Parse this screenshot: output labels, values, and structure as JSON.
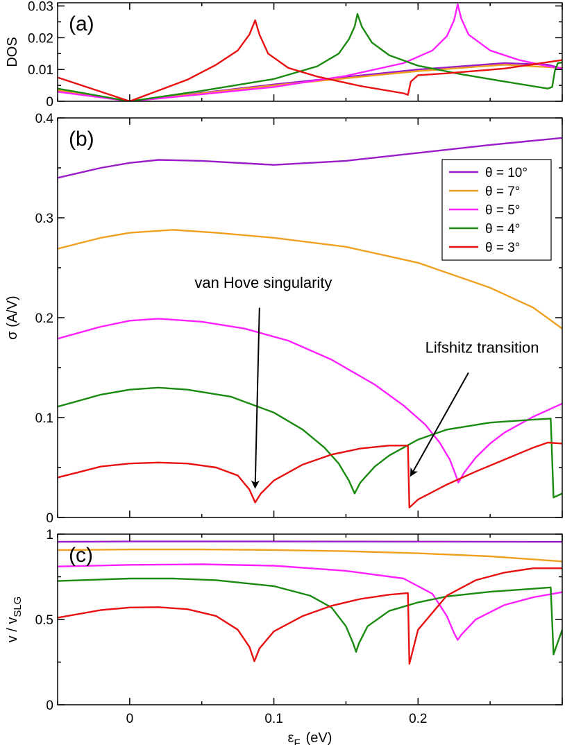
{
  "chart_data": [
    {
      "type": "line",
      "panel_label": "(a)",
      "ylabel": "DOS",
      "xlim": [
        -0.05,
        0.3
      ],
      "ylim": [
        0,
        0.031
      ],
      "yticks": [
        0,
        0.01,
        0.02,
        0.03
      ],
      "ytick_labels": [
        "0",
        "0.01",
        "0.02",
        "0.03"
      ],
      "xticks": [
        0,
        0.1,
        0.2
      ],
      "show_xtick_labels": false,
      "series": [
        {
          "color": "#9a1cc8",
          "points": [
            [
              -0.05,
              0.0035
            ],
            [
              0.0,
              0.0
            ],
            [
              0.1,
              0.0053
            ],
            [
              0.2,
              0.01
            ],
            [
              0.26,
              0.012
            ],
            [
              0.29,
              0.0115
            ],
            [
              0.3,
              0.0103
            ]
          ]
        },
        {
          "color": "#f0a020",
          "points": [
            [
              -0.05,
              0.0035
            ],
            [
              0.0,
              0.0
            ],
            [
              0.1,
              0.005
            ],
            [
              0.2,
              0.0095
            ],
            [
              0.26,
              0.0115
            ],
            [
              0.3,
              0.0105
            ]
          ]
        },
        {
          "color": "#ff20ff",
          "points": [
            [
              -0.05,
              0.003
            ],
            [
              0.0,
              0.0
            ],
            [
              0.05,
              0.0022
            ],
            [
              0.1,
              0.0045
            ],
            [
              0.15,
              0.008
            ],
            [
              0.19,
              0.012
            ],
            [
              0.21,
              0.016
            ],
            [
              0.22,
              0.0205
            ],
            [
              0.225,
              0.0255
            ],
            [
              0.2275,
              0.0305
            ],
            [
              0.23,
              0.026
            ],
            [
              0.235,
              0.021
            ],
            [
              0.25,
              0.016
            ],
            [
              0.27,
              0.013
            ],
            [
              0.29,
              0.011
            ],
            [
              0.3,
              0.0103
            ]
          ]
        },
        {
          "color": "#1a8a10",
          "points": [
            [
              -0.05,
              0.004
            ],
            [
              0.0,
              0.0
            ],
            [
              0.05,
              0.0033
            ],
            [
              0.1,
              0.007
            ],
            [
              0.13,
              0.011
            ],
            [
              0.145,
              0.015
            ],
            [
              0.152,
              0.0195
            ],
            [
              0.156,
              0.0235
            ],
            [
              0.158,
              0.0275
            ],
            [
              0.161,
              0.0235
            ],
            [
              0.168,
              0.0185
            ],
            [
              0.18,
              0.0145
            ],
            [
              0.2,
              0.0112
            ],
            [
              0.23,
              0.0085
            ],
            [
              0.26,
              0.0062
            ],
            [
              0.29,
              0.004
            ],
            [
              0.293,
              0.0045
            ],
            [
              0.295,
              0.0098
            ],
            [
              0.297,
              0.012
            ],
            [
              0.3,
              0.0122
            ]
          ]
        },
        {
          "color": "#e81010",
          "points": [
            [
              -0.05,
              0.0075
            ],
            [
              0.0,
              0.0
            ],
            [
              0.04,
              0.0068
            ],
            [
              0.06,
              0.0115
            ],
            [
              0.075,
              0.016
            ],
            [
              0.083,
              0.021
            ],
            [
              0.087,
              0.0255
            ],
            [
              0.09,
              0.021
            ],
            [
              0.096,
              0.015
            ],
            [
              0.11,
              0.0105
            ],
            [
              0.13,
              0.0078
            ],
            [
              0.16,
              0.0048
            ],
            [
              0.19,
              0.0025
            ],
            [
              0.193,
              0.002
            ],
            [
              0.195,
              0.0062
            ],
            [
              0.2,
              0.0082
            ],
            [
              0.22,
              0.0088
            ],
            [
              0.23,
              0.0092
            ],
            [
              0.26,
              0.0103
            ],
            [
              0.3,
              0.013
            ]
          ]
        }
      ]
    },
    {
      "type": "line",
      "panel_label": "(b)",
      "ylabel": "σ (A/V)",
      "xlim": [
        -0.05,
        0.3
      ],
      "ylim": [
        0,
        0.4
      ],
      "yticks": [
        0,
        0.1,
        0.2,
        0.3,
        0.4
      ],
      "ytick_labels": [
        "0",
        "0.1",
        "0.2",
        "0.3",
        "0.4"
      ],
      "xticks": [
        0,
        0.1,
        0.2
      ],
      "show_xtick_labels": false,
      "legend": {
        "placement": "top-right",
        "entries": [
          {
            "label": "θ = 10°",
            "color": "#9a1cc8"
          },
          {
            "label": "θ =   7°",
            "color": "#f0a020"
          },
          {
            "label": "θ =   5°",
            "color": "#ff20ff"
          },
          {
            "label": "θ =   4°",
            "color": "#1a8a10"
          },
          {
            "label": "θ =   3°",
            "color": "#e81010"
          }
        ]
      },
      "annotations": [
        {
          "text": "van Hove singularity",
          "text_at": [
            0.045,
            0.23
          ],
          "arrow_from": [
            0.09,
            0.21
          ],
          "arrow_to": [
            0.087,
            0.03
          ]
        },
        {
          "text": "Lifshitz transition",
          "text_at": [
            0.205,
            0.165
          ],
          "arrow_from": [
            0.235,
            0.145
          ],
          "arrow_to": [
            0.195,
            0.042
          ]
        }
      ],
      "series": [
        {
          "color": "#9a1cc8",
          "points": [
            [
              -0.05,
              0.34
            ],
            [
              -0.02,
              0.35
            ],
            [
              0.0,
              0.355
            ],
            [
              0.02,
              0.358
            ],
            [
              0.05,
              0.357
            ],
            [
              0.1,
              0.353
            ],
            [
              0.15,
              0.357
            ],
            [
              0.2,
              0.365
            ],
            [
              0.25,
              0.373
            ],
            [
              0.3,
              0.38
            ]
          ]
        },
        {
          "color": "#f0a020",
          "points": [
            [
              -0.05,
              0.269
            ],
            [
              -0.02,
              0.28
            ],
            [
              0.0,
              0.285
            ],
            [
              0.03,
              0.288
            ],
            [
              0.06,
              0.285
            ],
            [
              0.1,
              0.28
            ],
            [
              0.15,
              0.271
            ],
            [
              0.2,
              0.255
            ],
            [
              0.25,
              0.23
            ],
            [
              0.28,
              0.21
            ],
            [
              0.3,
              0.189
            ]
          ]
        },
        {
          "color": "#ff20ff",
          "points": [
            [
              -0.05,
              0.179
            ],
            [
              -0.02,
              0.191
            ],
            [
              0.0,
              0.197
            ],
            [
              0.02,
              0.199
            ],
            [
              0.05,
              0.196
            ],
            [
              0.08,
              0.189
            ],
            [
              0.11,
              0.177
            ],
            [
              0.14,
              0.158
            ],
            [
              0.17,
              0.133
            ],
            [
              0.19,
              0.112
            ],
            [
              0.205,
              0.093
            ],
            [
              0.215,
              0.075
            ],
            [
              0.222,
              0.058
            ],
            [
              0.226,
              0.043
            ],
            [
              0.228,
              0.035
            ],
            [
              0.232,
              0.045
            ],
            [
              0.24,
              0.06
            ],
            [
              0.25,
              0.074
            ],
            [
              0.26,
              0.085
            ],
            [
              0.28,
              0.101
            ],
            [
              0.3,
              0.114
            ]
          ]
        },
        {
          "color": "#1a8a10",
          "points": [
            [
              -0.05,
              0.111
            ],
            [
              -0.02,
              0.123
            ],
            [
              0.0,
              0.128
            ],
            [
              0.02,
              0.13
            ],
            [
              0.04,
              0.128
            ],
            [
              0.07,
              0.121
            ],
            [
              0.1,
              0.105
            ],
            [
              0.12,
              0.088
            ],
            [
              0.135,
              0.07
            ],
            [
              0.145,
              0.054
            ],
            [
              0.152,
              0.037
            ],
            [
              0.156,
              0.024
            ],
            [
              0.16,
              0.035
            ],
            [
              0.17,
              0.051
            ],
            [
              0.18,
              0.062
            ],
            [
              0.2,
              0.078
            ],
            [
              0.22,
              0.088
            ],
            [
              0.25,
              0.095
            ],
            [
              0.28,
              0.098
            ],
            [
              0.292,
              0.099
            ],
            [
              0.294,
              0.02
            ],
            [
              0.3,
              0.024
            ]
          ]
        },
        {
          "color": "#e81010",
          "points": [
            [
              -0.05,
              0.04
            ],
            [
              -0.02,
              0.051
            ],
            [
              0.0,
              0.054
            ],
            [
              0.02,
              0.055
            ],
            [
              0.04,
              0.054
            ],
            [
              0.06,
              0.05
            ],
            [
              0.075,
              0.042
            ],
            [
              0.083,
              0.028
            ],
            [
              0.087,
              0.015
            ],
            [
              0.091,
              0.024
            ],
            [
              0.1,
              0.037
            ],
            [
              0.12,
              0.053
            ],
            [
              0.14,
              0.063
            ],
            [
              0.16,
              0.069
            ],
            [
              0.18,
              0.072
            ],
            [
              0.193,
              0.072
            ],
            [
              0.194,
              0.01
            ],
            [
              0.2,
              0.018
            ],
            [
              0.22,
              0.033
            ],
            [
              0.24,
              0.046
            ],
            [
              0.26,
              0.058
            ],
            [
              0.28,
              0.07
            ],
            [
              0.29,
              0.075
            ],
            [
              0.3,
              0.074
            ]
          ]
        }
      ]
    },
    {
      "type": "line",
      "panel_label": "(c)",
      "ylabel": "v / v",
      "ylabel_subscript": "SLG",
      "xlabel": "ε",
      "xlabel_subscript": "F",
      "xlabel_suffix": "(eV)",
      "xlim": [
        -0.05,
        0.3
      ],
      "ylim": [
        0,
        1.0
      ],
      "yticks": [
        0,
        0.5,
        1
      ],
      "ytick_labels": [
        "0",
        "0.5",
        "1"
      ],
      "xticks": [
        0,
        0.1,
        0.2
      ],
      "xtick_labels": [
        "0",
        "0.1",
        "0.2"
      ],
      "show_xtick_labels": true,
      "series": [
        {
          "color": "#9a1cc8",
          "points": [
            [
              -0.05,
              0.955
            ],
            [
              0.0,
              0.957
            ],
            [
              0.1,
              0.957
            ],
            [
              0.2,
              0.956
            ],
            [
              0.3,
              0.955
            ]
          ]
        },
        {
          "color": "#f0a020",
          "points": [
            [
              -0.05,
              0.906
            ],
            [
              0.0,
              0.91
            ],
            [
              0.05,
              0.91
            ],
            [
              0.1,
              0.907
            ],
            [
              0.15,
              0.9
            ],
            [
              0.2,
              0.888
            ],
            [
              0.25,
              0.87
            ],
            [
              0.3,
              0.84
            ]
          ]
        },
        {
          "color": "#ff20ff",
          "points": [
            [
              -0.05,
              0.81
            ],
            [
              0.0,
              0.82
            ],
            [
              0.05,
              0.823
            ],
            [
              0.1,
              0.815
            ],
            [
              0.15,
              0.785
            ],
            [
              0.19,
              0.74
            ],
            [
              0.21,
              0.65
            ],
            [
              0.22,
              0.52
            ],
            [
              0.225,
              0.42
            ],
            [
              0.2275,
              0.38
            ],
            [
              0.23,
              0.41
            ],
            [
              0.24,
              0.5
            ],
            [
              0.26,
              0.585
            ],
            [
              0.28,
              0.63
            ],
            [
              0.3,
              0.66
            ]
          ]
        },
        {
          "color": "#1a8a10",
          "points": [
            [
              -0.05,
              0.725
            ],
            [
              0.0,
              0.74
            ],
            [
              0.03,
              0.74
            ],
            [
              0.06,
              0.73
            ],
            [
              0.1,
              0.695
            ],
            [
              0.125,
              0.64
            ],
            [
              0.14,
              0.57
            ],
            [
              0.15,
              0.46
            ],
            [
              0.155,
              0.36
            ],
            [
              0.157,
              0.31
            ],
            [
              0.159,
              0.36
            ],
            [
              0.165,
              0.46
            ],
            [
              0.18,
              0.55
            ],
            [
              0.2,
              0.6
            ],
            [
              0.22,
              0.635
            ],
            [
              0.25,
              0.662
            ],
            [
              0.28,
              0.68
            ],
            [
              0.292,
              0.688
            ],
            [
              0.294,
              0.295
            ],
            [
              0.3,
              0.44
            ]
          ]
        },
        {
          "color": "#e81010",
          "points": [
            [
              -0.05,
              0.51
            ],
            [
              -0.02,
              0.555
            ],
            [
              0.0,
              0.57
            ],
            [
              0.02,
              0.572
            ],
            [
              0.04,
              0.56
            ],
            [
              0.06,
              0.52
            ],
            [
              0.075,
              0.44
            ],
            [
              0.083,
              0.34
            ],
            [
              0.0865,
              0.255
            ],
            [
              0.09,
              0.33
            ],
            [
              0.1,
              0.43
            ],
            [
              0.12,
              0.52
            ],
            [
              0.14,
              0.58
            ],
            [
              0.16,
              0.62
            ],
            [
              0.18,
              0.645
            ],
            [
              0.193,
              0.655
            ],
            [
              0.194,
              0.24
            ],
            [
              0.2,
              0.44
            ],
            [
              0.21,
              0.54
            ],
            [
              0.22,
              0.64
            ],
            [
              0.24,
              0.73
            ],
            [
              0.26,
              0.775
            ],
            [
              0.28,
              0.8
            ],
            [
              0.3,
              0.8
            ]
          ]
        }
      ]
    }
  ]
}
